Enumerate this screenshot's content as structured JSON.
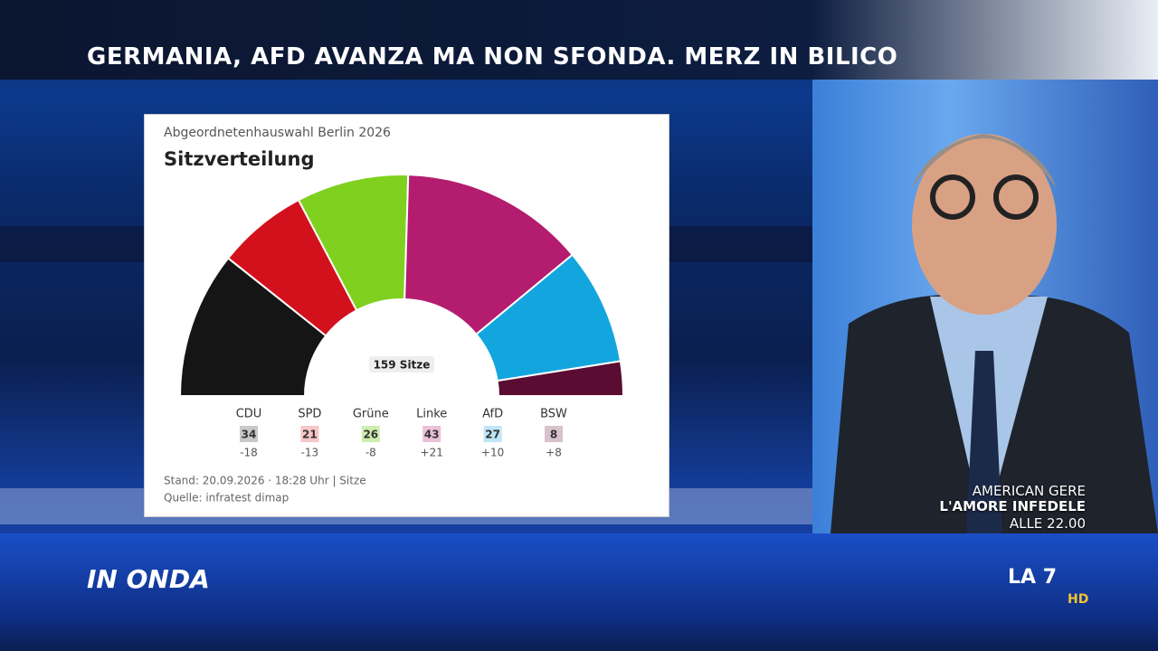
{
  "headline": "GERMANIA, AFD AVANZA MA NON SFONDA. MERZ IN BILICO",
  "chart_data": {
    "type": "parliament",
    "subtitle": "Abgeordnetenhauswahl Berlin 2026",
    "title": "Sitzverteilung",
    "center_label": "159 Sitze",
    "categories": [
      "CDU",
      "SPD",
      "Grüne",
      "Linke",
      "AfD",
      "BSW"
    ],
    "values": [
      34,
      21,
      26,
      43,
      27,
      8
    ],
    "colors": [
      "#151515",
      "#d3111c",
      "#80d11f",
      "#b41c6f",
      "#13a6de",
      "#5b0c33"
    ],
    "box_colors": [
      "#c9c9c9",
      "#f6c6c8",
      "#cdeeb0",
      "#ecc0d8",
      "#bfe6f6",
      "#d9c2cc"
    ],
    "changes": [
      -18,
      -13,
      -8,
      {
        "value": 21,
        "label": "+21"
      },
      {
        "value": 10,
        "label": "+10"
      },
      {
        "value": 8,
        "label": "+8"
      }
    ],
    "note": "Stand: 20.09.2026 · 18:28 Uhr | Sitze",
    "source": "Quelle: infratest dimap"
  },
  "promo": [
    "AMERICAN GERE",
    "L'AMORE INFEDELE",
    "ALLE 22.00"
  ],
  "logos": {
    "show": "IN ONDA",
    "channel": "LA 7",
    "hd": "HD"
  }
}
